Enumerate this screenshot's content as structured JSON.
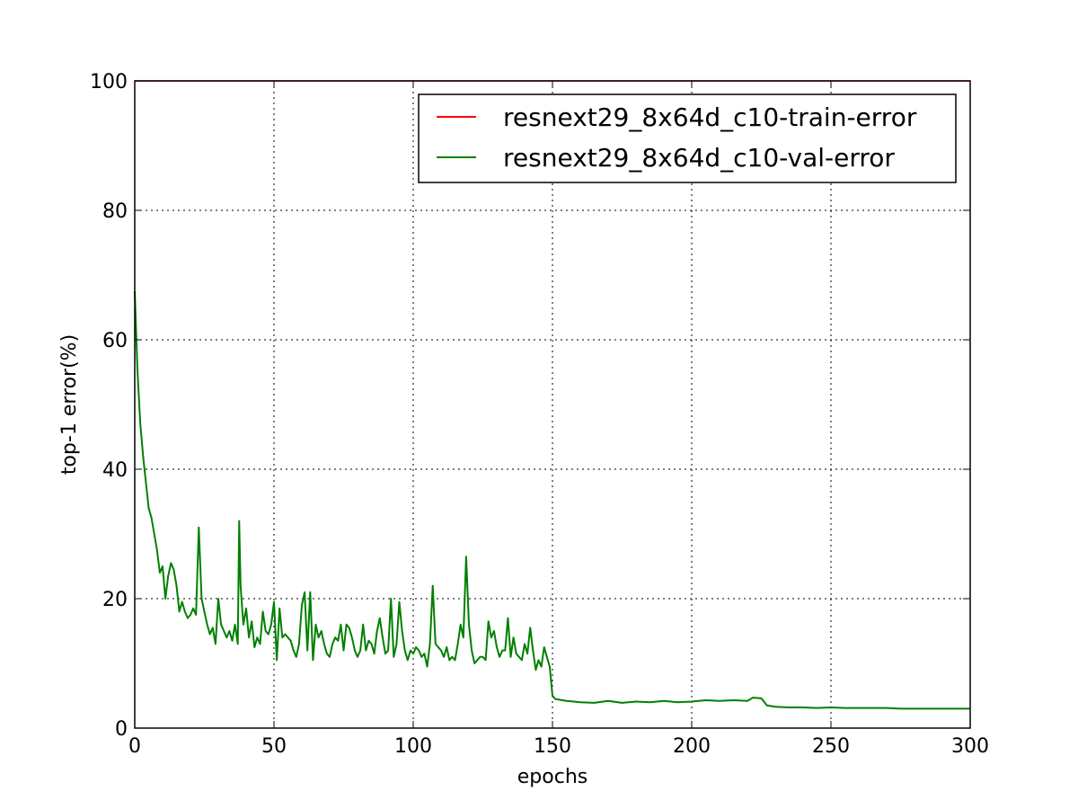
{
  "chart_data": {
    "type": "line",
    "title": "",
    "xlabel": "epochs",
    "ylabel": "top-1 error(%)",
    "xlim": [
      0,
      300
    ],
    "ylim": [
      0,
      100
    ],
    "x_ticks": [
      0,
      50,
      100,
      150,
      200,
      250,
      300
    ],
    "y_ticks": [
      0,
      20,
      40,
      60,
      80,
      100
    ],
    "grid": true,
    "legend_position": "top-right",
    "series": [
      {
        "name": "resnext29_8x64d_c10-train-error",
        "color": "#ff0000",
        "points": [
          [
            0,
            100
          ],
          [
            300,
            100
          ]
        ]
      },
      {
        "name": "resnext29_8x64d_c10-val-error",
        "color": "#008000",
        "points": [
          [
            0,
            67.5
          ],
          [
            1,
            55
          ],
          [
            2,
            47
          ],
          [
            3,
            42
          ],
          [
            4,
            38
          ],
          [
            5,
            34
          ],
          [
            6,
            32.5
          ],
          [
            7,
            30
          ],
          [
            8,
            27.5
          ],
          [
            9,
            24
          ],
          [
            10,
            25
          ],
          [
            11,
            20
          ],
          [
            12,
            23.5
          ],
          [
            13,
            25.5
          ],
          [
            14,
            24.5
          ],
          [
            15,
            22
          ],
          [
            16,
            18
          ],
          [
            17,
            19.5
          ],
          [
            18,
            18
          ],
          [
            19,
            17
          ],
          [
            20,
            17.5
          ],
          [
            21,
            18.5
          ],
          [
            22,
            17.5
          ],
          [
            23,
            31
          ],
          [
            24,
            20
          ],
          [
            25,
            18
          ],
          [
            26,
            16
          ],
          [
            27,
            14.5
          ],
          [
            28,
            15.5
          ],
          [
            29,
            13
          ],
          [
            30,
            20
          ],
          [
            31,
            16
          ],
          [
            32,
            15
          ],
          [
            33,
            14
          ],
          [
            34,
            15
          ],
          [
            35,
            13.5
          ],
          [
            36,
            16
          ],
          [
            37,
            13
          ],
          [
            37.5,
            32
          ],
          [
            38,
            22
          ],
          [
            39,
            16
          ],
          [
            40,
            18.5
          ],
          [
            41,
            14
          ],
          [
            42,
            16.5
          ],
          [
            43,
            12.5
          ],
          [
            44,
            14
          ],
          [
            45,
            13
          ],
          [
            46,
            18
          ],
          [
            47,
            15
          ],
          [
            48,
            14.5
          ],
          [
            49,
            16
          ],
          [
            50,
            19.5
          ],
          [
            51,
            10.5
          ],
          [
            52,
            18.5
          ],
          [
            53,
            14
          ],
          [
            54,
            14.5
          ],
          [
            55,
            14
          ],
          [
            56,
            13.5
          ],
          [
            57,
            12
          ],
          [
            58,
            11
          ],
          [
            59,
            13
          ],
          [
            60,
            19
          ],
          [
            61,
            21
          ],
          [
            62,
            12
          ],
          [
            63,
            21
          ],
          [
            64,
            10.5
          ],
          [
            65,
            16
          ],
          [
            66,
            14
          ],
          [
            67,
            15
          ],
          [
            68,
            13
          ],
          [
            69,
            11.5
          ],
          [
            70,
            11
          ],
          [
            71,
            13
          ],
          [
            72,
            14
          ],
          [
            73,
            13.5
          ],
          [
            74,
            16
          ],
          [
            75,
            12
          ],
          [
            76,
            16
          ],
          [
            77,
            15.5
          ],
          [
            78,
            14
          ],
          [
            79,
            12
          ],
          [
            80,
            11
          ],
          [
            81,
            12
          ],
          [
            82,
            16
          ],
          [
            83,
            12
          ],
          [
            84,
            13.5
          ],
          [
            85,
            13
          ],
          [
            86,
            11.5
          ],
          [
            87,
            15
          ],
          [
            88,
            17
          ],
          [
            89,
            14
          ],
          [
            90,
            11.5
          ],
          [
            91,
            12
          ],
          [
            92,
            20
          ],
          [
            93,
            11
          ],
          [
            94,
            13
          ],
          [
            95,
            19.5
          ],
          [
            96,
            15
          ],
          [
            97,
            12
          ],
          [
            98,
            10.5
          ],
          [
            99,
            12
          ],
          [
            100,
            11.5
          ],
          [
            101,
            12.5
          ],
          [
            102,
            12
          ],
          [
            103,
            11
          ],
          [
            104,
            11.5
          ],
          [
            105,
            9.5
          ],
          [
            106,
            13
          ],
          [
            107,
            22
          ],
          [
            108,
            13
          ],
          [
            109,
            12.5
          ],
          [
            110,
            12
          ],
          [
            111,
            11
          ],
          [
            112,
            12.5
          ],
          [
            113,
            10.5
          ],
          [
            114,
            11
          ],
          [
            115,
            10.5
          ],
          [
            116,
            13
          ],
          [
            117,
            16
          ],
          [
            118,
            14
          ],
          [
            119,
            26.5
          ],
          [
            120,
            16
          ],
          [
            121,
            12
          ],
          [
            122,
            10
          ],
          [
            123,
            10.5
          ],
          [
            124,
            11
          ],
          [
            125,
            11
          ],
          [
            126,
            10.5
          ],
          [
            127,
            16.5
          ],
          [
            128,
            14
          ],
          [
            129,
            15
          ],
          [
            130,
            12.5
          ],
          [
            131,
            11
          ],
          [
            132,
            12
          ],
          [
            133,
            12
          ],
          [
            134,
            17
          ],
          [
            135,
            11
          ],
          [
            136,
            14
          ],
          [
            137,
            11.5
          ],
          [
            138,
            11
          ],
          [
            139,
            10.5
          ],
          [
            140,
            13
          ],
          [
            141,
            11.5
          ],
          [
            142,
            15.5
          ],
          [
            143,
            12
          ],
          [
            144,
            9
          ],
          [
            145,
            10.5
          ],
          [
            146,
            9.5
          ],
          [
            147,
            12.5
          ],
          [
            148,
            11
          ],
          [
            149,
            9.5
          ],
          [
            150,
            5
          ],
          [
            151,
            4.5
          ],
          [
            155,
            4.2
          ],
          [
            160,
            4
          ],
          [
            165,
            3.9
          ],
          [
            170,
            4.2
          ],
          [
            175,
            3.9
          ],
          [
            180,
            4.1
          ],
          [
            185,
            4
          ],
          [
            190,
            4.2
          ],
          [
            195,
            4
          ],
          [
            200,
            4.1
          ],
          [
            205,
            4.3
          ],
          [
            210,
            4.2
          ],
          [
            215,
            4.3
          ],
          [
            220,
            4.2
          ],
          [
            222,
            4.7
          ],
          [
            225,
            4.6
          ],
          [
            227,
            3.5
          ],
          [
            230,
            3.3
          ],
          [
            235,
            3.2
          ],
          [
            240,
            3.2
          ],
          [
            245,
            3.1
          ],
          [
            250,
            3.2
          ],
          [
            255,
            3.1
          ],
          [
            260,
            3.1
          ],
          [
            265,
            3.1
          ],
          [
            270,
            3.1
          ],
          [
            275,
            3.0
          ],
          [
            280,
            3.0
          ],
          [
            285,
            3.0
          ],
          [
            290,
            3.0
          ],
          [
            295,
            3.0
          ],
          [
            300,
            3.0
          ]
        ]
      }
    ]
  }
}
